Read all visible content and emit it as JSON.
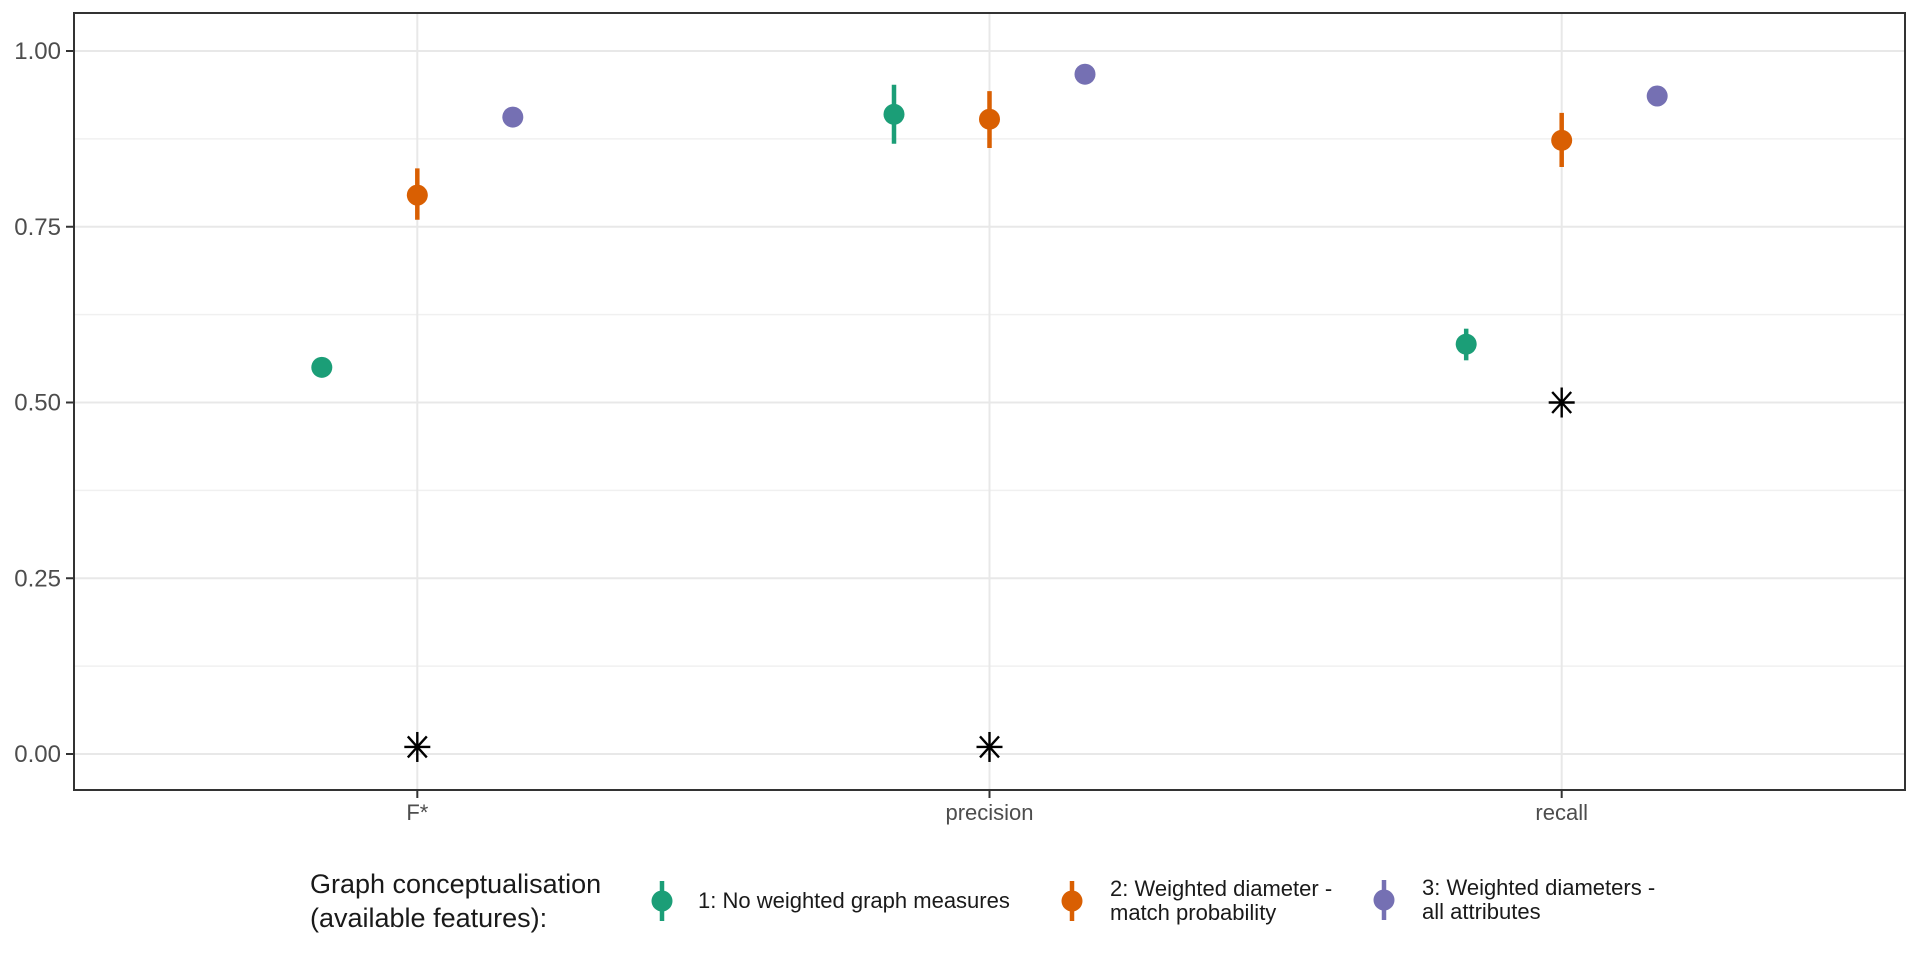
{
  "colors": {
    "series1": "#1b9e77",
    "series2": "#d95f02",
    "series3": "#7570b3",
    "asterisk": "#000000",
    "grid_major": "#e8e8e8",
    "grid_minor": "#f0f0f0",
    "panel_border": "#333333",
    "tick": "#333333",
    "axis_text": "#4d4d4d",
    "legend_text": "#1a1a1a",
    "background": "#ffffff"
  },
  "chart_data": {
    "type": "pointrange-scatter",
    "categories": [
      "F*",
      "precision",
      "recall"
    ],
    "ylim": [
      0,
      1
    ],
    "yticks": [
      0,
      0.25,
      0.5,
      0.75,
      1.0
    ],
    "ytick_labels": [
      "0.00",
      "0.25",
      "0.50",
      "0.75",
      "1.00"
    ],
    "yticks_minor": [
      0.125,
      0.375,
      0.625,
      0.875
    ],
    "grid": "major+minor horizontal, category vertical",
    "xlabel": "",
    "ylabel": "",
    "legend_position": "bottom",
    "legend_title": "Graph conceptualisation (available features):",
    "series": [
      {
        "name": "1: No weighted graph measures",
        "color": "#1b9e77",
        "values": [
          {
            "category": "F*",
            "y": 0.55,
            "ymin": 0.55,
            "ymax": 0.55
          },
          {
            "category": "precision",
            "y": 0.91,
            "ymin": 0.868,
            "ymax": 0.952
          },
          {
            "category": "recall",
            "y": 0.583,
            "ymin": 0.56,
            "ymax": 0.605
          }
        ]
      },
      {
        "name": "2: Weighted diameter - match probability",
        "color": "#d95f02",
        "values": [
          {
            "category": "F*",
            "y": 0.795,
            "ymin": 0.76,
            "ymax": 0.833
          },
          {
            "category": "precision",
            "y": 0.903,
            "ymin": 0.862,
            "ymax": 0.943
          },
          {
            "category": "recall",
            "y": 0.873,
            "ymin": 0.835,
            "ymax": 0.912
          }
        ]
      },
      {
        "name": "3: Weighted diameters - all attributes",
        "color": "#7570b3",
        "values": [
          {
            "category": "F*",
            "y": 0.906,
            "ymin": 0.906,
            "ymax": 0.906
          },
          {
            "category": "precision",
            "y": 0.967,
            "ymin": 0.967,
            "ymax": 0.967
          },
          {
            "category": "recall",
            "y": 0.936,
            "ymin": 0.936,
            "ymax": 0.936
          }
        ]
      }
    ],
    "baseline_markers": {
      "shape": "8-spoke asterisk",
      "color": "#000000",
      "values": [
        {
          "category": "F*",
          "y": 0.01
        },
        {
          "category": "precision",
          "y": 0.01
        },
        {
          "category": "recall",
          "y": 0.5
        }
      ]
    }
  },
  "legend": {
    "title_line1": "Graph conceptualisation",
    "title_line2": "(available features):",
    "items": [
      {
        "line1": "1: No weighted graph measures",
        "line2": ""
      },
      {
        "line1": "2: Weighted diameter -",
        "line2": "match probability"
      },
      {
        "line1": "3: Weighted diameters -",
        "line2": "all attributes"
      }
    ]
  }
}
